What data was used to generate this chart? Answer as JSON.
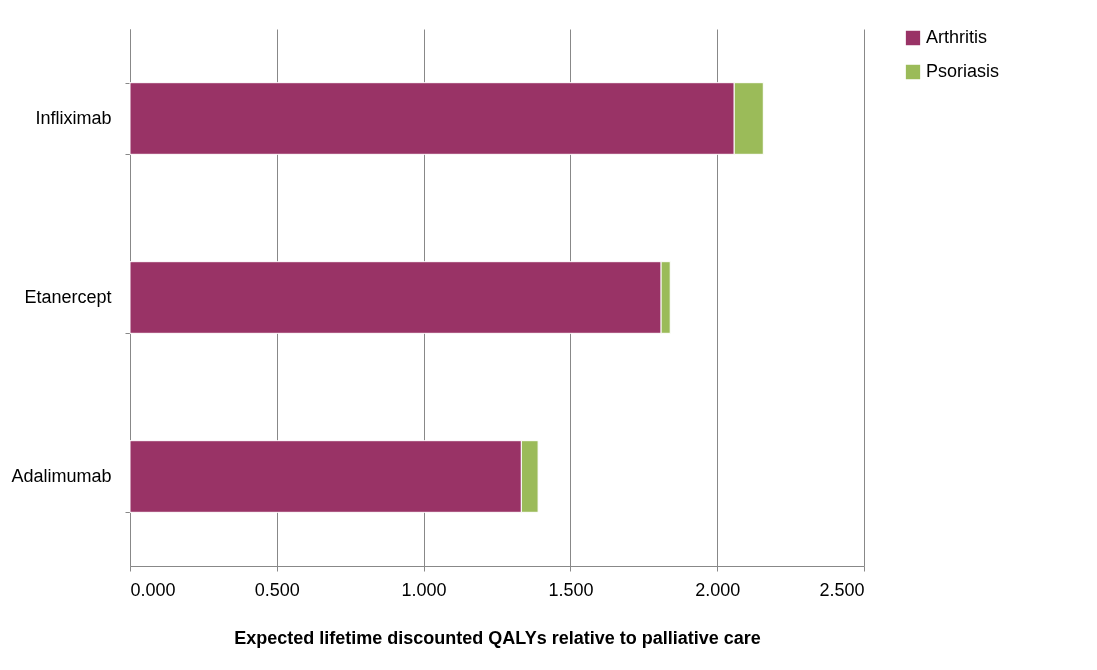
{
  "chart_data": {
    "type": "bar",
    "orientation": "horizontal",
    "stacked": true,
    "xlabel": "Expected  lifetime discounted QALYs relative to palliative care",
    "categories": [
      "Infliximab",
      "Etanercept",
      "Adalimumab"
    ],
    "series": [
      {
        "name": "Arthritis",
        "color": "#993366",
        "values": [
          2.058,
          1.809,
          1.333
        ]
      },
      {
        "name": "Psoriasis",
        "color": "#9bbb59",
        "values": [
          0.099,
          0.031,
          0.057
        ]
      }
    ],
    "xlim": [
      0,
      2.5
    ],
    "xticks": [
      {
        "value": 0,
        "label": "0.000"
      },
      {
        "value": 0.5,
        "label": "0.500"
      },
      {
        "value": 1,
        "label": "1.000"
      },
      {
        "value": 1.5,
        "label": "1.500"
      },
      {
        "value": 2,
        "label": "2.000"
      },
      {
        "value": 2.5,
        "label": "2.500"
      }
    ],
    "grid": "x",
    "legend": "right"
  }
}
